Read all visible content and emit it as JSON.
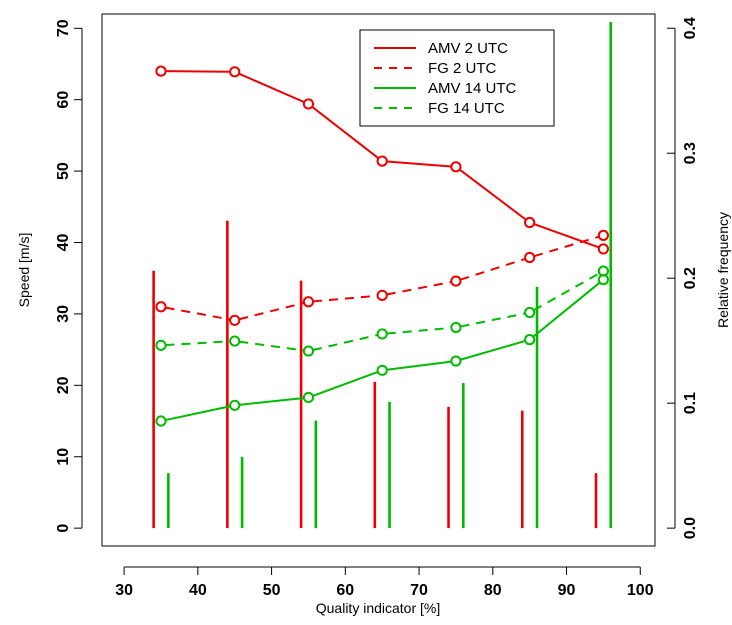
{
  "chart_data": {
    "type": "line",
    "xlabel": "Quality indicator [%]",
    "ylabel": "Speed [m/s]",
    "y2label": "Relative frequency",
    "xlim": [
      27,
      102
    ],
    "ylim": [
      -2.5,
      72
    ],
    "y2lim": [
      -0.0143,
      0.4114
    ],
    "x_ticks": [
      30,
      40,
      50,
      60,
      70,
      80,
      90,
      100
    ],
    "y_ticks": [
      0,
      10,
      20,
      30,
      40,
      50,
      60,
      70
    ],
    "y2_ticks": [
      0.0,
      0.1,
      0.2,
      0.3,
      0.4
    ],
    "y2_tick_labels": [
      "0.0",
      "0.1",
      "0.2",
      "0.3",
      "0.4"
    ],
    "grid": false,
    "legend_position": "top-right",
    "series": [
      {
        "name": "AMV 2 UTC",
        "color": "#ee0000",
        "style": "solid",
        "x": [
          35,
          45,
          55,
          65,
          75,
          85,
          95
        ],
        "y": [
          64.0,
          63.9,
          59.4,
          51.4,
          50.6,
          42.8,
          39.1
        ]
      },
      {
        "name": "FG 2 UTC",
        "color": "#ee0000",
        "style": "dashed",
        "x": [
          35,
          45,
          55,
          65,
          75,
          85,
          95
        ],
        "y": [
          31.0,
          29.1,
          31.7,
          32.6,
          34.6,
          37.9,
          41.0
        ]
      },
      {
        "name": "AMV 14 UTC",
        "color": "#00bb00",
        "style": "solid",
        "x": [
          35,
          45,
          55,
          65,
          75,
          85,
          95
        ],
        "y": [
          15.0,
          17.2,
          18.3,
          22.1,
          23.4,
          26.4,
          34.8
        ]
      },
      {
        "name": "FG 14 UTC",
        "color": "#00bb00",
        "style": "dashed",
        "x": [
          35,
          45,
          55,
          65,
          75,
          85,
          95
        ],
        "y": [
          25.6,
          26.2,
          24.8,
          27.2,
          28.1,
          30.2,
          36.0
        ]
      }
    ],
    "frequency_bars": [
      {
        "color": "#ee0000",
        "x": [
          34,
          44,
          54,
          64,
          74,
          84,
          94
        ],
        "values": [
          0.206,
          0.246,
          0.198,
          0.117,
          0.097,
          0.094,
          0.044
        ]
      },
      {
        "color": "#00bb00",
        "x": [
          36,
          46,
          56,
          66,
          76,
          86,
          96
        ],
        "values": [
          0.044,
          0.057,
          0.086,
          0.101,
          0.116,
          0.193,
          0.405
        ]
      }
    ]
  }
}
